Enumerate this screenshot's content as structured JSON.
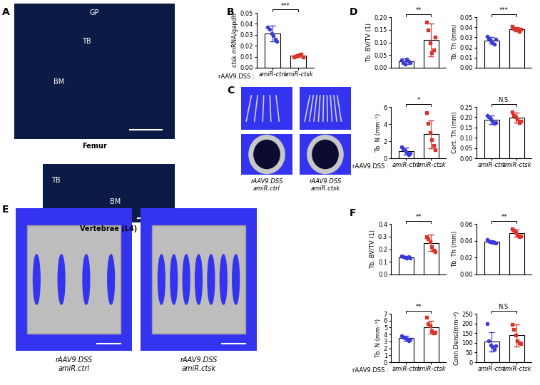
{
  "chart_data": [
    {
      "panel": "B",
      "type": "bar",
      "ylabel": "ctsk mRNA/gapdh",
      "xlabel": "rAAV9.DSS :",
      "categories": [
        "amiR-ctrl",
        "amiR-ctsk"
      ],
      "values": [
        0.031,
        0.011
      ],
      "errors": [
        0.007,
        0.0012
      ],
      "points": [
        [
          0.037,
          0.035,
          0.031,
          0.029,
          0.026,
          0.024
        ],
        [
          0.0095,
          0.0105,
          0.011,
          0.0115,
          0.0125,
          0.01
        ]
      ],
      "colors": [
        "#3a3ad8",
        "#d9342b"
      ],
      "ylim": [
        0,
        0.05
      ],
      "yticks": [
        {
          "value": 0,
          "label": "0.00"
        },
        {
          "value": 0.01,
          "label": "0.01"
        },
        {
          "value": 0.02,
          "label": "0.02"
        },
        {
          "value": 0.03,
          "label": "0.03"
        },
        {
          "value": 0.04,
          "label": "0.04"
        },
        {
          "value": 0.05,
          "label": "0.05"
        }
      ],
      "significance": "***"
    },
    {
      "panel": "D",
      "type": "bar",
      "ylabel": "Tb. BV/TV (1)",
      "categories": [
        null,
        null
      ],
      "values": [
        0.025,
        0.11
      ],
      "errors": [
        0.012,
        0.065
      ],
      "points": [
        [
          0.03,
          0.02,
          0.015,
          0.035,
          0.025,
          0.02
        ],
        [
          0.18,
          0.15,
          0.1,
          0.06,
          0.07,
          0.12
        ]
      ],
      "colors": [
        "#3a3ad8",
        "#d9342b"
      ],
      "ylim": [
        0,
        0.2
      ],
      "yticks": [
        {
          "value": 0,
          "label": "0.00"
        },
        {
          "value": 0.05,
          "label": "0.05"
        },
        {
          "value": 0.1,
          "label": "0.10"
        },
        {
          "value": 0.15,
          "label": "0.15"
        },
        {
          "value": 0.2,
          "label": "0.20"
        }
      ],
      "significance": "**"
    },
    {
      "type": "bar",
      "ylabel": "Tb. Th (mm)",
      "categories": [
        null,
        null
      ],
      "values": [
        0.027,
        0.038
      ],
      "errors": [
        0.003,
        0.002
      ],
      "points": [
        [
          0.031,
          0.029,
          0.027,
          0.025,
          0.023,
          0.028
        ],
        [
          0.041,
          0.039,
          0.038,
          0.037,
          0.036,
          0.038
        ]
      ],
      "colors": [
        "#3a3ad8",
        "#d9342b"
      ],
      "ylim": [
        0,
        0.05
      ],
      "yticks": [
        {
          "value": 0,
          "label": "0.00"
        },
        {
          "value": 0.01,
          "label": "0.01"
        },
        {
          "value": 0.02,
          "label": "0.02"
        },
        {
          "value": 0.03,
          "label": "0.03"
        },
        {
          "value": 0.04,
          "label": "0.04"
        },
        {
          "value": 0.05,
          "label": "0.05"
        }
      ],
      "significance": "***"
    },
    {
      "type": "bar",
      "ylabel": "Tb. N (mm⁻¹)",
      "xlabel": "rAAV9.DSS :",
      "categories": [
        "amiR-ctrl",
        "amiR-ctsk"
      ],
      "values": [
        0.85,
        2.8
      ],
      "errors": [
        0.4,
        1.6
      ],
      "points": [
        [
          1.3,
          1.1,
          0.9,
          0.7,
          0.4,
          0.6
        ],
        [
          5.3,
          4.1,
          3.0,
          2.2,
          1.5,
          1.0
        ]
      ],
      "colors": [
        "#3a3ad8",
        "#d9342b"
      ],
      "ylim": [
        0,
        6
      ],
      "yticks": [
        0,
        2,
        4,
        6
      ],
      "significance": "*"
    },
    {
      "type": "bar",
      "ylabel": "Cort. Th (mm)",
      "categories": [
        "amiR-ctrl",
        "amiR-ctsk"
      ],
      "values": [
        0.188,
        0.197
      ],
      "errors": [
        0.02,
        0.025
      ],
      "points": [
        [
          0.21,
          0.2,
          0.19,
          0.18,
          0.17,
          0.175
        ],
        [
          0.225,
          0.21,
          0.2,
          0.19,
          0.175,
          0.18
        ]
      ],
      "colors": [
        "#3a3ad8",
        "#d9342b"
      ],
      "ylim": [
        0,
        0.25
      ],
      "yticks": [
        {
          "value": 0,
          "label": "0.00"
        },
        {
          "value": 0.05,
          "label": "0.05"
        },
        {
          "value": 0.1,
          "label": "0.10"
        },
        {
          "value": 0.15,
          "label": "0.15"
        },
        {
          "value": 0.2,
          "label": "0.20"
        },
        {
          "value": 0.25,
          "label": "0.25"
        }
      ],
      "significance": "N.S."
    },
    {
      "panel": "F",
      "type": "bar",
      "ylabel": "Tb. BV/TV (1)",
      "categories": [
        null,
        null
      ],
      "values": [
        0.138,
        0.25
      ],
      "errors": [
        0.008,
        0.065
      ],
      "points": [
        [
          0.145,
          0.14,
          0.135,
          0.13,
          0.14,
          0.128
        ],
        [
          0.3,
          0.28,
          0.26,
          0.22,
          0.19,
          0.18
        ]
      ],
      "colors": [
        "#3a3ad8",
        "#d9342b"
      ],
      "ylim": [
        0,
        0.4
      ],
      "yticks": [
        {
          "value": 0,
          "label": "0.0"
        },
        {
          "value": 0.1,
          "label": "0.1"
        },
        {
          "value": 0.2,
          "label": "0.2"
        },
        {
          "value": 0.3,
          "label": "0.3"
        },
        {
          "value": 0.4,
          "label": "0.4"
        }
      ],
      "significance": "**"
    },
    {
      "type": "bar",
      "ylabel": "Tb. Th (mm)",
      "categories": [
        null,
        null
      ],
      "values": [
        0.039,
        0.049
      ],
      "errors": [
        0.0015,
        0.004
      ],
      "points": [
        [
          0.041,
          0.04,
          0.039,
          0.038,
          0.038,
          0.037
        ],
        [
          0.054,
          0.052,
          0.05,
          0.047,
          0.045,
          0.046
        ]
      ],
      "colors": [
        "#3a3ad8",
        "#d9342b"
      ],
      "ylim": [
        0,
        0.06
      ],
      "yticks": [
        {
          "value": 0,
          "label": "0.00"
        },
        {
          "value": 0.02,
          "label": "0.02"
        },
        {
          "value": 0.04,
          "label": "0.04"
        },
        {
          "value": 0.06,
          "label": "0.06"
        }
      ],
      "significance": "**"
    },
    {
      "type": "bar",
      "ylabel": "Tb. N (mm⁻¹)",
      "xlabel": "rAAV9.DSS :",
      "categories": [
        "amiR-ctrl",
        "amiR-ctsk"
      ],
      "values": [
        3.45,
        5.05
      ],
      "errors": [
        0.35,
        0.95
      ],
      "points": [
        [
          3.8,
          3.6,
          3.5,
          3.4,
          3.1,
          3.3
        ],
        [
          6.5,
          5.6,
          5.2,
          4.5,
          4.2,
          4.3
        ]
      ],
      "colors": [
        "#3a3ad8",
        "#d9342b"
      ],
      "ylim": [
        0,
        7
      ],
      "yticks": [
        0,
        1,
        2,
        3,
        4,
        5,
        6,
        7
      ],
      "significance": "**"
    },
    {
      "type": "bar",
      "ylabel": "Conn.Dens(mm⁻³)",
      "categories": [
        "amiR-ctrl",
        "amiR-ctsk"
      ],
      "values": [
        105,
        138
      ],
      "errors": [
        50,
        58
      ],
      "points": [
        [
          200,
          110,
          90,
          80,
          65,
          85
        ],
        [
          195,
          170,
          140,
          110,
          100,
          95
        ]
      ],
      "colors": [
        "#3a3ad8",
        "#d9342b"
      ],
      "ylim": [
        0,
        250
      ],
      "yticks": [
        0,
        50,
        100,
        150,
        200,
        250
      ],
      "significance": "N.S."
    }
  ],
  "images": [
    {
      "panel": "A",
      "items": [
        {
          "caption": "Femur",
          "labels": [
            "GP",
            "TB",
            "BM"
          ]
        },
        {
          "caption": "Vertebrae (L4)",
          "labels": [
            "TB",
            "BM"
          ]
        }
      ]
    },
    {
      "panel": "C",
      "captions": [
        "rAAV9.DSS\namiR.ctrl",
        "rAAV9.DSS\namiR.ctsk"
      ]
    },
    {
      "panel": "E",
      "captions": [
        "rAAV9.DSS\namiR.ctrl",
        "rAAV9.DSS\namiR.ctsk"
      ]
    }
  ]
}
